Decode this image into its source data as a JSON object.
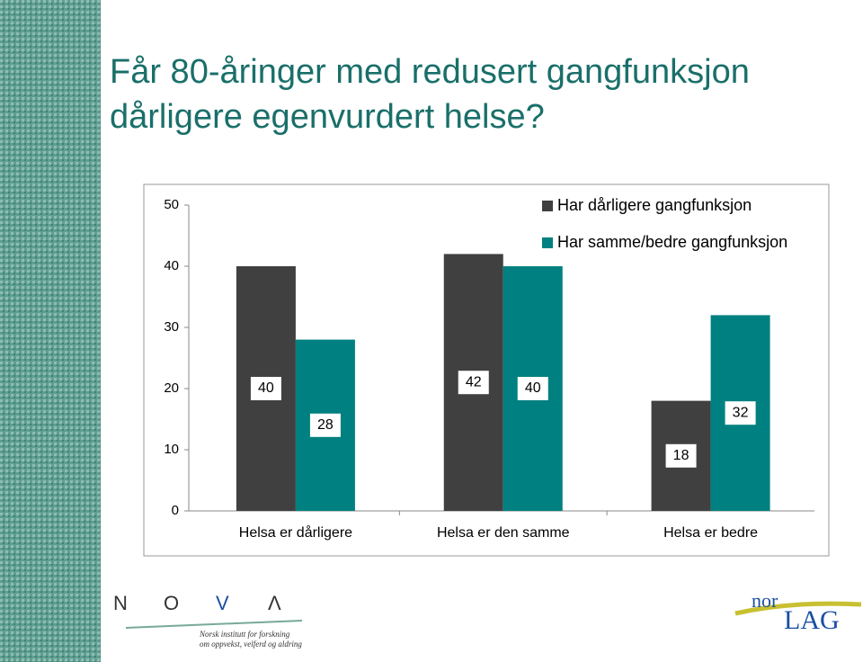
{
  "title_lines": [
    "Får 80-åringer med redusert gangfunksjon",
    "dårligere egenvurdert helse?"
  ],
  "chart_data": {
    "type": "bar",
    "categories": [
      "Helsa er dårligere",
      "Helsa er den samme",
      "Helsa er bedre"
    ],
    "series": [
      {
        "name": "Har dårligere gangfunksjon",
        "color": "#404040",
        "values": [
          40,
          42,
          18
        ]
      },
      {
        "name": "Har samme/bedre gangfunksjon",
        "color": "#008080",
        "values": [
          28,
          40,
          32
        ]
      }
    ],
    "ylim": [
      0,
      50
    ],
    "yticks": [
      0,
      10,
      20,
      30,
      40,
      50
    ],
    "legend": "top-right",
    "data_labels": true
  },
  "logos": {
    "nova_letters": [
      "N",
      "O",
      "V",
      "Λ"
    ],
    "nova_sub": [
      "Norsk institutt for forskning",
      "om oppvekst, velferd og aldring"
    ],
    "norlag": [
      "nor",
      "LAG"
    ]
  }
}
